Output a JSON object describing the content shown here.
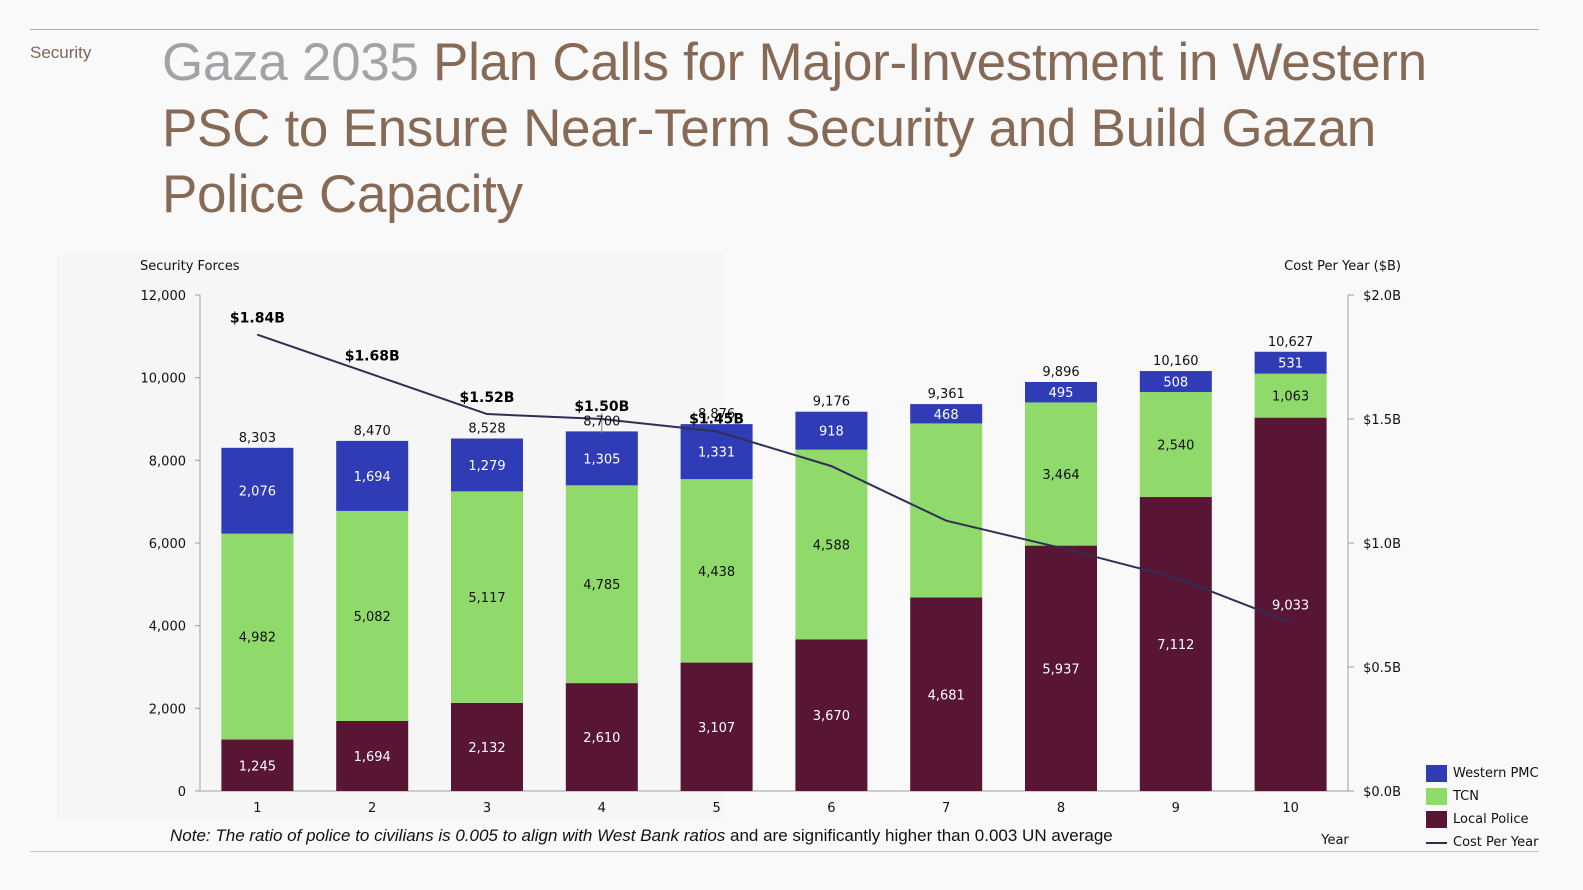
{
  "header": {
    "section": "Security",
    "title_prefix": "Gaza 2035",
    "title_rest": " Plan Calls for Major-Investment in Western PSC to Ensure Near-Term Security and Build Gazan Police Capacity"
  },
  "note": {
    "italic": "Note: The ratio of police to civilians is 0.005 to align with West Bank ratios",
    "regular": " and are significantly higher than 0.003 UN average"
  },
  "colors": {
    "western_pmc": "#2f3cb5",
    "tcn": "#90d96b",
    "local_police": "#581534",
    "cost_line": "#2d2f55",
    "axis": "#a0a0a0"
  },
  "chart_data": {
    "type": "bar",
    "stacked": true,
    "title": "",
    "xlabel": "Year",
    "ylabel": "Security Forces",
    "y2label": "Cost Per Year ($B)",
    "categories": [
      "1",
      "2",
      "3",
      "4",
      "5",
      "6",
      "7",
      "8",
      "9",
      "10"
    ],
    "ylim": [
      0,
      12000
    ],
    "yticks": [
      0,
      2000,
      4000,
      6000,
      8000,
      10000,
      12000
    ],
    "ytick_labels": [
      "0",
      "2,000",
      "4,000",
      "6,000",
      "8,000",
      "10,000",
      "12,000"
    ],
    "y2lim": [
      0,
      2.0
    ],
    "y2ticks": [
      0,
      0.5,
      1.0,
      1.5,
      2.0
    ],
    "y2tick_labels": [
      "$0.0B",
      "$0.5B",
      "$1.0B",
      "$1.5B",
      "$2.0B"
    ],
    "series": [
      {
        "name": "Local Police",
        "values": [
          1245,
          1694,
          2132,
          2610,
          3107,
          3670,
          4681,
          5937,
          7112,
          9033
        ],
        "labels": [
          "1,245",
          "1,694",
          "2,132",
          "2,610",
          "3,107",
          "3,670",
          "4,681",
          "5,937",
          "7,112",
          "9,033"
        ]
      },
      {
        "name": "TCN",
        "values": [
          4982,
          5082,
          5117,
          4785,
          4438,
          4588,
          4212,
          3464,
          2540,
          1063
        ],
        "labels": [
          "4,982",
          "5,082",
          "5,117",
          "4,785",
          "4,438",
          "4,588",
          "",
          "3,464",
          "2,540",
          "1,063"
        ]
      },
      {
        "name": "Western PMC",
        "values": [
          2076,
          1694,
          1279,
          1305,
          1331,
          918,
          468,
          495,
          508,
          531
        ],
        "labels": [
          "2,076",
          "1,694",
          "1,279",
          "1,305",
          "1,331",
          "918",
          "468",
          "495",
          "508",
          "531"
        ]
      }
    ],
    "totals": [
      "8,303",
      "8,470",
      "8,528",
      "8,700",
      "8,876",
      "9,176",
      "9,361",
      "9,896",
      "10,160",
      "10,627"
    ],
    "line_series": {
      "name": "Cost Per Year",
      "axis": "right",
      "values": [
        1.84,
        1.68,
        1.52,
        1.5,
        1.45,
        1.31,
        1.09,
        0.98,
        0.86,
        0.68
      ],
      "labels": [
        "$1.84B",
        "$1.68B",
        "$1.52B",
        "$1.50B",
        "$1.45B",
        "",
        "",
        "",
        "",
        ""
      ]
    },
    "legend": {
      "position": "bottom-right",
      "entries": [
        "Western PMC",
        "TCN",
        "Local Police",
        "Cost Per Year"
      ]
    },
    "grid": false
  }
}
